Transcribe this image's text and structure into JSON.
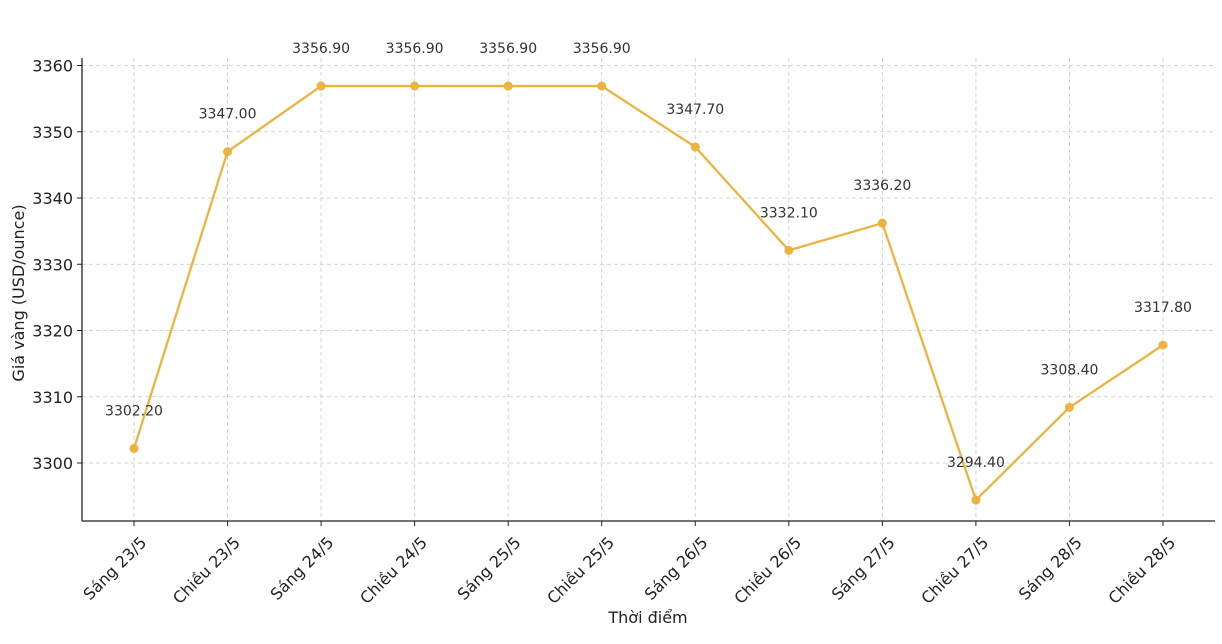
{
  "chart_data": {
    "type": "line",
    "title": "",
    "xlabel": "Thời điểm",
    "ylabel": "Giá vàng (USD/ounce)",
    "categories": [
      "Sáng 23/5",
      "Chiều 23/5",
      "Sáng 24/5",
      "Chiều 24/5",
      "Sáng 25/5",
      "Chiều 25/5",
      "Sáng 26/5",
      "Chiều 26/5",
      "Sáng 27/5",
      "Chiều 27/5",
      "Sáng 28/5",
      "Chiều 28/5"
    ],
    "series": [
      {
        "color": "#EDB33F",
        "values": [
          3302.2,
          3347.0,
          3356.9,
          3356.9,
          3356.9,
          3356.9,
          3347.7,
          3332.1,
          3336.2,
          3294.4,
          3308.4,
          3317.8
        ],
        "labels": [
          "3302.20",
          "3347.00",
          "3356.90",
          "3356.90",
          "3356.90",
          "3356.90",
          "3347.70",
          "3332.10",
          "3336.20",
          "3294.40",
          "3308.40",
          "3317.80"
        ]
      }
    ],
    "ylim": [
      3291.3,
      3360
    ],
    "yticks": [
      3300,
      3310,
      3320,
      3330,
      3340,
      3350,
      3360
    ],
    "grid": true,
    "legend": "none"
  }
}
